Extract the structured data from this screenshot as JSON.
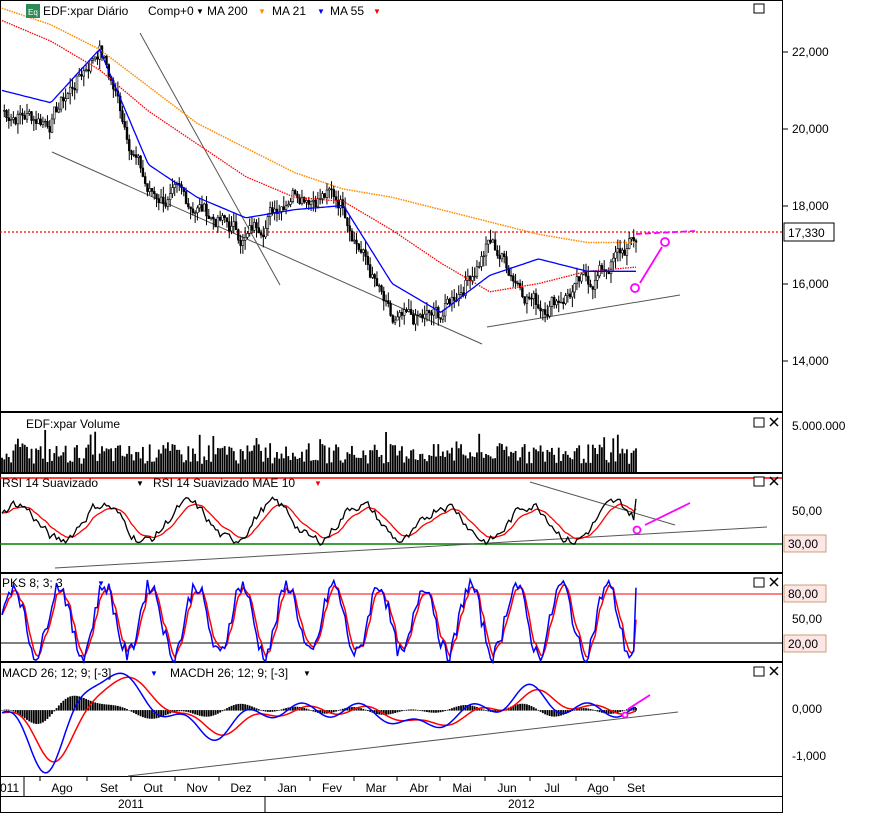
{
  "colors": {
    "candle_up": "#000000",
    "ma200": "#ff8c00",
    "ma21": "#0000ff",
    "ma55": "#ff0000",
    "rsi": "#000000",
    "rsi_ma": "#ff0000",
    "pks_k": "#0000ff",
    "pks_d": "#ff0000",
    "macd": "#0000ff",
    "macd_signal": "#ff0000",
    "annotation": "#ff00ff",
    "threshold_high": "#ff0000",
    "threshold_low": "#008000",
    "price_level": "#ff0000"
  },
  "price_panel": {
    "legend": {
      "icon_text": "Eq",
      "symbol": "EDF:xpar Diário",
      "comp": "Comp+0",
      "ma200": "MA 200",
      "ma21": "MA 21",
      "ma55": "MA 55"
    },
    "current_price_label": "17,330",
    "y_ticks": [
      "22,000",
      "20,000",
      "18,000",
      "16,000",
      "14,000"
    ]
  },
  "volume_panel": {
    "title": "EDF:xpar Volume",
    "y_tick": "5.000.000"
  },
  "rsi_panel": {
    "title": "RSI 14 Suavizado",
    "title2": "RSI 14 Suavizado MAE 10",
    "y_ticks": [
      "50,00"
    ],
    "low_level_label": "30,00"
  },
  "pks_panel": {
    "title": "PKS 8; 3; 3",
    "high_label": "80,00",
    "mid_label": "50,00",
    "low_label": "20,00"
  },
  "macd_panel": {
    "title": "MACD 26; 12; 9; [-3]",
    "title2": "MACDH 26; 12; 9; [-3]",
    "y_ticks": [
      "0,000",
      "-1,000"
    ]
  },
  "x_axis": {
    "months": [
      "Ago",
      "Set",
      "Out",
      "Nov",
      "Dez",
      "Jan",
      "Fev",
      "Mar",
      "Abr",
      "Mai",
      "Jun",
      "Jul",
      "Ago",
      "Set"
    ],
    "cut_label": "011",
    "years": [
      "2011",
      "2012"
    ]
  },
  "chart_data": {
    "type": "line",
    "title": "EDF:xpar Diário",
    "xlabel": "",
    "ylabel": "",
    "ylim": [
      13200,
      23200
    ],
    "x": [
      "2011-08",
      "2011-09",
      "2011-10",
      "2011-11",
      "2011-12",
      "2012-01",
      "2012-02",
      "2012-03",
      "2012-04",
      "2012-05",
      "2012-06",
      "2012-07",
      "2012-08",
      "2012-09"
    ],
    "series": [
      {
        "name": "EDF:xpar Diário",
        "values": [
          20500,
          20300,
          22100,
          18500,
          18200,
          17400,
          18700,
          18300,
          15200,
          15500,
          17300,
          15800,
          16300,
          17330
        ]
      },
      {
        "name": "MA 200",
        "values": [
          23000,
          22600,
          22000,
          21100,
          20200,
          19600,
          19000,
          18600,
          18400,
          18100,
          17800,
          17500,
          17300,
          17300
        ]
      },
      {
        "name": "MA 21",
        "values": [
          21000,
          20700,
          22000,
          19200,
          18400,
          17900,
          18100,
          18200,
          16300,
          15600,
          16500,
          16900,
          16600,
          16600
        ]
      },
      {
        "name": "MA 55",
        "values": [
          22700,
          22200,
          21500,
          20500,
          19700,
          18900,
          18400,
          18300,
          17600,
          16800,
          16100,
          16300,
          16600,
          16700
        ]
      }
    ],
    "volume": {
      "ylim": [
        0,
        6500000
      ]
    },
    "rsi": {
      "ylim": [
        10,
        85
      ],
      "levels": [
        30,
        80
      ],
      "last": 66
    },
    "pks": {
      "ylim": [
        5,
        100
      ],
      "levels": [
        20,
        80
      ],
      "last": 85
    },
    "macd": {
      "ylim": [
        -1400,
        1000
      ],
      "last": 50
    }
  }
}
